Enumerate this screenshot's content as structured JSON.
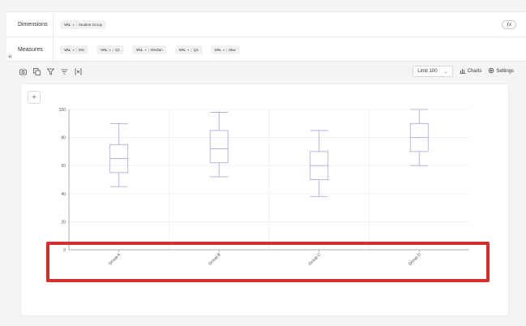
{
  "config": {
    "dimensions_label": "Dimensions",
    "measures_label": "Measures",
    "dimension_pills": [
      {
        "tag": "VAL",
        "value": "Student Group"
      }
    ],
    "measure_pills": [
      {
        "tag": "VAL",
        "value": "Min"
      },
      {
        "tag": "VAL",
        "value": "Q1"
      },
      {
        "tag": "VAL",
        "value": "Median"
      },
      {
        "tag": "VAL",
        "value": "Q3"
      },
      {
        "tag": "VAL",
        "value": "Max"
      }
    ],
    "fx_label": "ƒx",
    "collapse_glyph": "«"
  },
  "toolbar": {
    "limit_label": "Limit 100",
    "charts_label": "Charts",
    "settings_label": "Settings",
    "icons": [
      "camera-icon",
      "copy-icon",
      "filter-icon",
      "sort-filter-icon",
      "variable-icon"
    ]
  },
  "panel": {
    "add_glyph": "+"
  },
  "colors": {
    "box": "#b39ddb",
    "grid": "#ececef",
    "axis": "#999999",
    "highlight": "#d32f2f"
  },
  "chart_data": {
    "type": "boxplot",
    "categories": [
      "Group A",
      "Group B",
      "Group C",
      "Group D"
    ],
    "series": [
      {
        "min": 45,
        "q1": 55,
        "median": 65,
        "q3": 75,
        "max": 90
      },
      {
        "min": 52,
        "q1": 62,
        "median": 72,
        "q3": 85,
        "max": 98
      },
      {
        "min": 38,
        "q1": 50,
        "median": 60,
        "q3": 70,
        "max": 85
      },
      {
        "min": 60,
        "q1": 70,
        "median": 80,
        "q3": 90,
        "max": 100
      }
    ],
    "ylim": [
      0,
      100
    ],
    "yticks": [
      0,
      20,
      40,
      60,
      80,
      100
    ],
    "grid": true
  }
}
